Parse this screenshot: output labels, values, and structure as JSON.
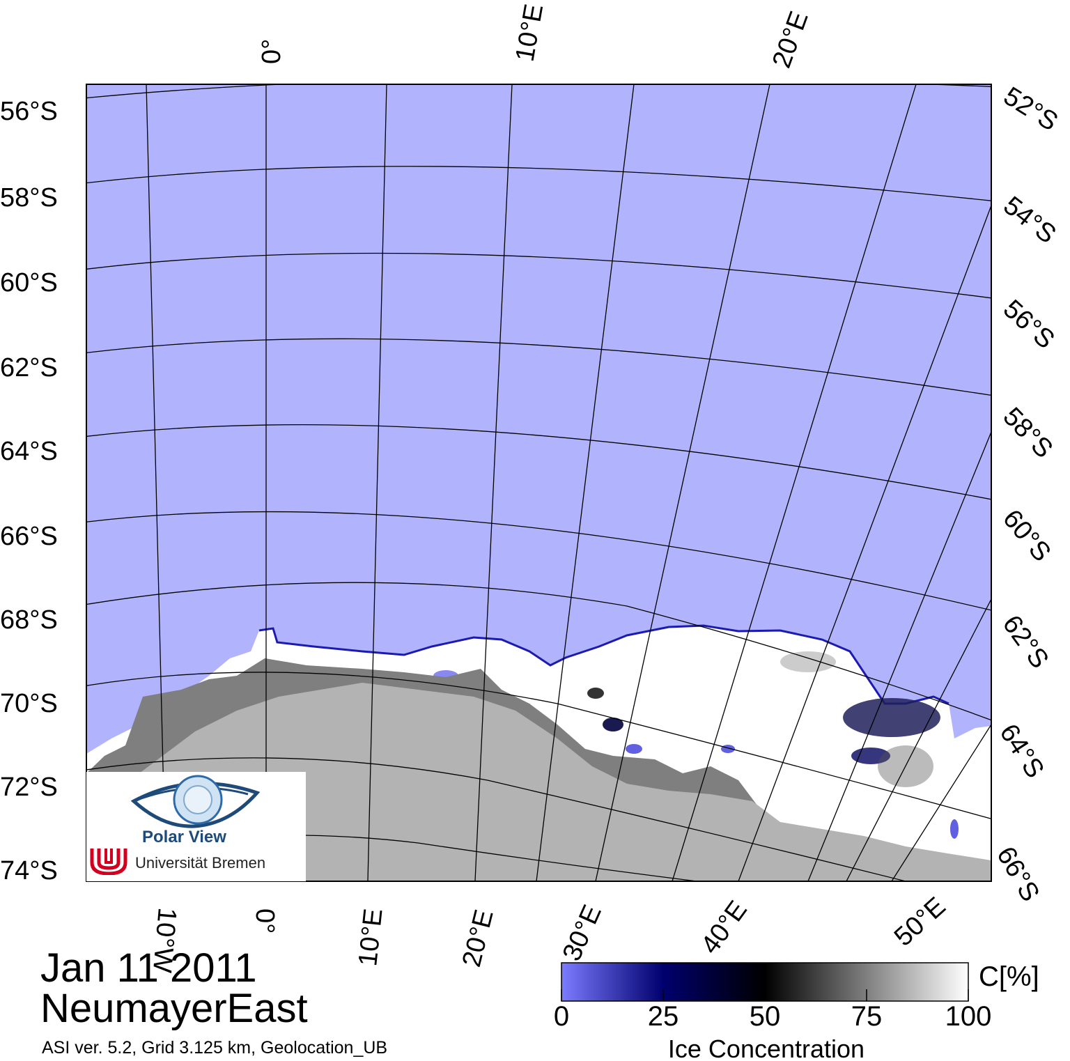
{
  "map": {
    "date": "Jan 11 2011",
    "region": "NeumayerEast",
    "meta": "ASI ver. 5.2,  Grid 3.125 km, Geolocation_UB",
    "latitudes_left": [
      "56°S",
      "58°S",
      "60°S",
      "62°S",
      "64°S",
      "66°S",
      "68°S",
      "70°S",
      "72°S",
      "74°S"
    ],
    "latitudes_right": [
      "52°S",
      "54°S",
      "56°S",
      "58°S",
      "60°S",
      "62°S",
      "64°S",
      "66°S"
    ],
    "longitudes_top": [
      "0°",
      "10°E",
      "20°E"
    ],
    "longitudes_bottom": [
      "10°W",
      "0°",
      "10°E",
      "20°E",
      "30°E",
      "40°E",
      "50°E"
    ],
    "colors": {
      "open_water": "#b1b4fc",
      "ice_shelf": "#7f7f7f",
      "land": "#b3b3b3",
      "sea_ice": "#ffffff",
      "graticule": "#000000"
    }
  },
  "logo": {
    "line1": "Polar View",
    "line2": "Universität Bremen",
    "icons": [
      "eye-globe-icon",
      "bremen-u-icon"
    ]
  },
  "colorbar": {
    "title": "Ice Concentration",
    "unit": "C[%]",
    "ticks": [
      "0",
      "25",
      "50",
      "75",
      "100"
    ],
    "stops": [
      "#7b7bff",
      "#00006e",
      "#000000",
      "#ffffff"
    ]
  }
}
